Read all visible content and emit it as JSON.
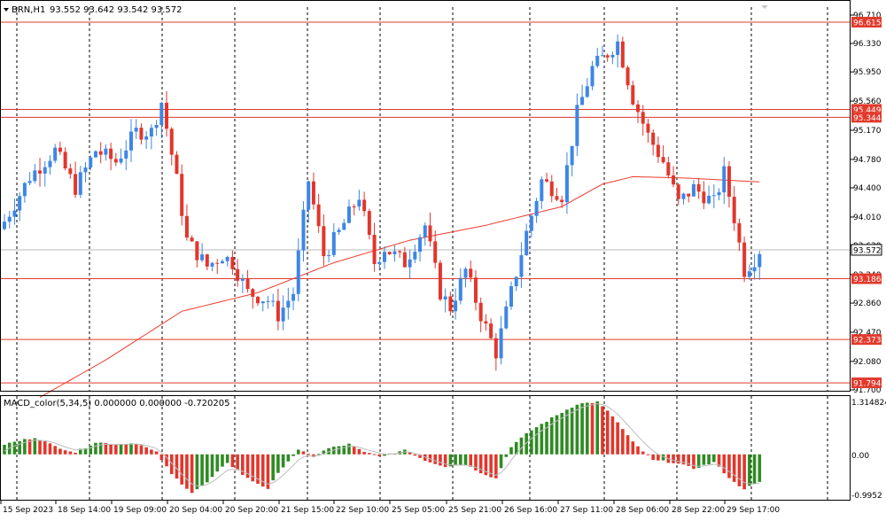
{
  "header": {
    "symbol": "BRN,H1",
    "ohlc": "93.552 93.642 93.542 93.572"
  },
  "macd_header": "MACD_color(5,34,5) 0.000000 0.000000 -0.720205",
  "colors": {
    "bull": "#3d86e6",
    "bear": "#e2362c",
    "ma": "#ef3a2e",
    "level": "#e23a2c",
    "macd_up": "#2e8b22",
    "macd_down": "#e2362c",
    "signal": "#bdbdbd",
    "grid": "#000000",
    "price_label_bg": "#e23a2c"
  },
  "chart_data": [
    {
      "type": "candlestick",
      "title": "BRN,H1",
      "price_axis_ticks": [
        "96.710",
        "96.330",
        "95.950",
        "95.560",
        "95.170",
        "94.780",
        "94.400",
        "94.010",
        "93.630",
        "93.240",
        "92.860",
        "92.470",
        "92.080",
        "91.700"
      ],
      "ylim": [
        91.7,
        96.71
      ],
      "current_price": "93.572",
      "levels": [
        "96.615",
        "95.449",
        "95.344",
        "93.186",
        "92.373",
        "91.794"
      ],
      "x_labels": [
        "15 Sep 2023",
        "18 Sep 14:00",
        "19 Sep 09:00",
        "20 Sep 04:00",
        "20 Sep 20:00",
        "21 Sep 15:00",
        "22 Sep 10:00",
        "25 Sep 05:00",
        "25 Sep 21:00",
        "26 Sep 16:00",
        "27 Sep 11:00",
        "28 Sep 06:00",
        "28 Sep 22:00",
        "29 Sep 17:00"
      ],
      "vertical_grid": "dashed",
      "candle_count": 150,
      "close_anchors": [
        [
          0,
          93.95
        ],
        [
          5,
          94.55
        ],
        [
          10,
          94.9
        ],
        [
          14,
          94.4
        ],
        [
          18,
          94.9
        ],
        [
          22,
          94.75
        ],
        [
          26,
          95.15
        ],
        [
          29,
          95.15
        ],
        [
          31,
          95.55
        ],
        [
          34,
          94.5
        ],
        [
          36,
          93.7
        ],
        [
          40,
          93.35
        ],
        [
          43,
          93.5
        ],
        [
          45,
          93.4
        ],
        [
          48,
          93.0
        ],
        [
          52,
          92.9
        ],
        [
          54,
          92.7
        ],
        [
          57,
          93.0
        ],
        [
          60,
          94.5
        ],
        [
          63,
          93.5
        ],
        [
          66,
          93.8
        ],
        [
          70,
          94.3
        ],
        [
          73,
          93.4
        ],
        [
          75,
          93.6
        ],
        [
          79,
          93.4
        ],
        [
          83,
          93.9
        ],
        [
          86,
          93.0
        ],
        [
          88,
          92.8
        ],
        [
          91,
          93.3
        ],
        [
          94,
          92.7
        ],
        [
          97,
          92.2
        ],
        [
          100,
          93.0
        ],
        [
          103,
          93.8
        ],
        [
          106,
          94.5
        ],
        [
          110,
          94.3
        ],
        [
          113,
          95.4
        ],
        [
          116,
          96.0
        ],
        [
          119,
          96.2
        ],
        [
          121,
          96.35
        ],
        [
          124,
          95.6
        ],
        [
          127,
          95.1
        ],
        [
          130,
          94.75
        ],
        [
          133,
          94.2
        ],
        [
          136,
          94.4
        ],
        [
          140,
          94.2
        ],
        [
          142,
          94.6
        ],
        [
          144,
          94.0
        ],
        [
          146,
          93.3
        ],
        [
          148,
          93.45
        ],
        [
          149,
          93.57
        ]
      ],
      "moving_average": {
        "anchors": [
          [
            7,
            91.6
          ],
          [
            20,
            92.1
          ],
          [
            35,
            92.75
          ],
          [
            50,
            93.0
          ],
          [
            65,
            93.4
          ],
          [
            80,
            93.7
          ],
          [
            95,
            93.9
          ],
          [
            110,
            94.15
          ],
          [
            118,
            94.45
          ],
          [
            124,
            94.55
          ],
          [
            135,
            94.53
          ],
          [
            149,
            94.48
          ]
        ]
      }
    },
    {
      "type": "histogram",
      "title": "MACD_color(5,34,5) 0.000000 0.000000 -0.720205",
      "axis_ticks": [
        "1.314824",
        "0.00",
        "-0.9952"
      ],
      "ylim": [
        -0.9952,
        1.314824
      ],
      "anchors": [
        [
          0,
          0.25
        ],
        [
          6,
          0.42
        ],
        [
          10,
          0.2
        ],
        [
          14,
          0.05
        ],
        [
          18,
          0.3
        ],
        [
          22,
          0.25
        ],
        [
          26,
          0.28
        ],
        [
          30,
          0.05
        ],
        [
          33,
          -0.5
        ],
        [
          37,
          -0.95
        ],
        [
          40,
          -0.7
        ],
        [
          44,
          -0.2
        ],
        [
          48,
          -0.6
        ],
        [
          52,
          -0.85
        ],
        [
          55,
          -0.3
        ],
        [
          58,
          0.1
        ],
        [
          61,
          -0.05
        ],
        [
          64,
          0.15
        ],
        [
          68,
          0.25
        ],
        [
          71,
          0.05
        ],
        [
          75,
          -0.05
        ],
        [
          79,
          0.12
        ],
        [
          83,
          -0.15
        ],
        [
          87,
          -0.3
        ],
        [
          91,
          -0.25
        ],
        [
          94,
          -0.45
        ],
        [
          97,
          -0.6
        ],
        [
          100,
          0.2
        ],
        [
          104,
          0.6
        ],
        [
          108,
          0.9
        ],
        [
          113,
          1.25
        ],
        [
          117,
          1.3
        ],
        [
          120,
          0.95
        ],
        [
          124,
          0.3
        ],
        [
          128,
          -0.15
        ],
        [
          132,
          -0.2
        ],
        [
          136,
          -0.35
        ],
        [
          140,
          -0.2
        ],
        [
          144,
          -0.7
        ],
        [
          146,
          -0.85
        ],
        [
          149,
          -0.7
        ]
      ]
    }
  ]
}
